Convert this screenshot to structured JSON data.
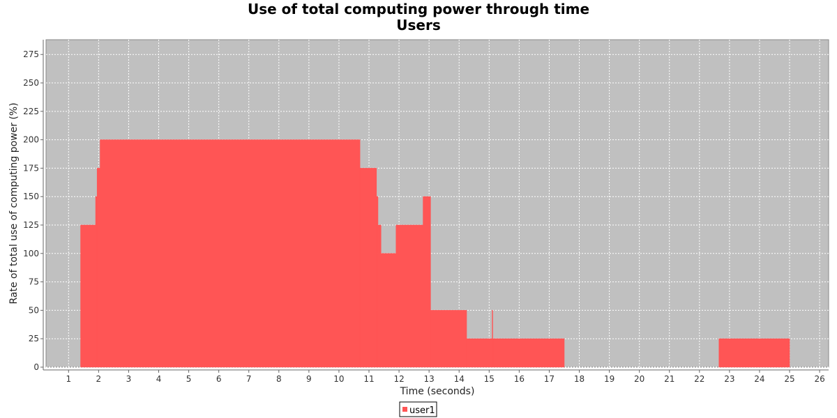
{
  "chart_data": {
    "type": "area",
    "title": "Use of total computing power through time",
    "subtitle": "Users",
    "xlabel": "Time (seconds)",
    "ylabel": "Rate of total use of computing power (%)",
    "xlim": [
      0.25,
      26.3
    ],
    "ylim": [
      0,
      288
    ],
    "xticks": [
      1,
      2,
      3,
      4,
      5,
      6,
      7,
      8,
      9,
      10,
      11,
      12,
      13,
      14,
      15,
      16,
      17,
      18,
      19,
      20,
      21,
      22,
      23,
      24,
      25,
      26
    ],
    "yticks": [
      0,
      25,
      50,
      75,
      100,
      125,
      150,
      175,
      200,
      225,
      250,
      275
    ],
    "grid": true,
    "legend_position": "bottom-center",
    "series": [
      {
        "name": "user1",
        "color": "#ff5555",
        "step": true,
        "x": [
          1.4,
          1.9,
          1.95,
          2.05,
          10.7,
          11.25,
          11.3,
          11.4,
          11.9,
          12.8,
          13.05,
          14.25,
          15.1,
          15.12,
          15.14,
          17.5,
          22.65,
          25.0
        ],
        "y": [
          125,
          150,
          175,
          200,
          175,
          150,
          125,
          100,
          125,
          150,
          50,
          25,
          50,
          25,
          25,
          0,
          25,
          0
        ]
      }
    ]
  }
}
